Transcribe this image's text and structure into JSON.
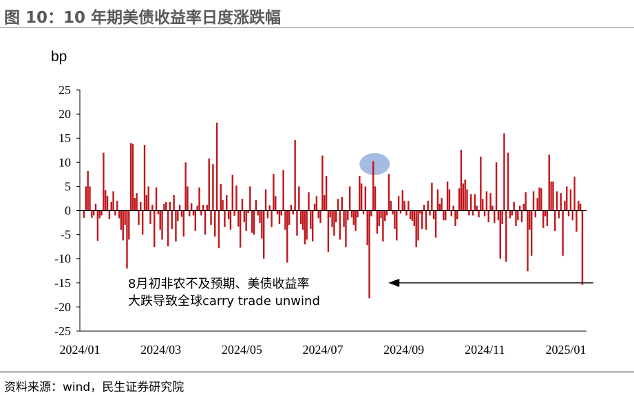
{
  "title": "图 10：10 年期美债收益率日度涨跌幅",
  "source": "资料来源：wind，民生证券研究院",
  "chart_data": {
    "type": "bar",
    "title": "",
    "ylabel": "bp",
    "xlabel": "",
    "ylim": [
      -25,
      25
    ],
    "yticks": [
      25,
      20,
      15,
      10,
      5,
      0,
      -5,
      -10,
      -15,
      -20,
      -25
    ],
    "xticks": [
      "2024/01",
      "2024/03",
      "2024/05",
      "2024/07",
      "2024/09",
      "2024/11",
      "2025/01"
    ],
    "bar_color": "#c0161a",
    "highlight_color": "#8faadc",
    "annotation": {
      "lines": [
        "8月初非农不及预期、美债收益率",
        "大跌导致全球carry trade unwind"
      ],
      "target_index": 148,
      "arrow_from_index": 262
    },
    "values": [
      -1.5,
      5,
      8.2,
      5,
      -1.5,
      -1,
      1.4,
      -6.3,
      -1.6,
      -1,
      12,
      4.2,
      3,
      -1.8,
      1.8,
      4,
      -1,
      2,
      -1.6,
      -4,
      -6.2,
      -3,
      -12,
      -6,
      14,
      13.8,
      2.6,
      3.6,
      -3,
      1.8,
      -5,
      13.6,
      3.2,
      5,
      -2.8,
      1.2,
      -7.6,
      4.8,
      -0.8,
      -4,
      -6,
      1.4,
      1.8,
      -7.4,
      1.8,
      -3.8,
      3.2,
      -6.4,
      -2.2,
      1.2,
      -1.3,
      -5.4,
      10,
      5,
      -1.2,
      1.5,
      -1,
      -4.2,
      1,
      4.8,
      -1,
      1.2,
      -5,
      1.2,
      10.8,
      -3,
      9.6,
      -5.4,
      18.2,
      -7.8,
      5.5,
      2.2,
      -3.4,
      3.2,
      -1.8,
      -4,
      7.4,
      -1.1,
      5.2,
      -3.3,
      -7.7,
      2.4,
      -2.4,
      -4.2,
      -0.5,
      5,
      -4.6,
      -5,
      2.2,
      -1,
      -2.6,
      -5.8,
      -10,
      4.4,
      -1.6,
      1.1,
      -3.4,
      7.6,
      3,
      -0.8,
      -2.8,
      -1,
      8.4,
      -4,
      -10.8,
      -3,
      1.2,
      -0.8,
      14.6,
      -5.2,
      5,
      -2.8,
      -4,
      -7,
      -6,
      3.8,
      -3.8,
      -6.4,
      1.4,
      3,
      -1.6,
      -2.6,
      11.4,
      3.2,
      7.2,
      -8.6,
      -1.4,
      -3.4,
      -5.2,
      -2.4,
      2.4,
      -6,
      2.8,
      -3.4,
      -7.6,
      -2,
      5,
      -1.4,
      -3,
      -4.2,
      -1.4,
      7.2,
      5.6,
      -0.8,
      5,
      -7.2,
      -18.2,
      -1.2,
      10.2,
      5,
      -4.8,
      -3.2,
      -1.6,
      -6.4,
      -2.2,
      -1,
      7.6,
      2,
      -0.8,
      -3.8,
      -6.2,
      3,
      -0.6,
      4.2,
      2,
      -1,
      2,
      -1.8,
      -2.2,
      -3.2,
      -7.6,
      -6.2,
      -0.6,
      -3.8,
      1.2,
      -4,
      2,
      -1,
      5.8,
      -1.8,
      -5.6,
      4.4,
      1.4,
      2.6,
      -2,
      -2,
      6,
      4.4,
      -1.2,
      1,
      -3.2,
      -1.8,
      4.6,
      12.6,
      5.6,
      6.4,
      4.4,
      -1,
      3.4,
      -1,
      3.4,
      1,
      -1.4,
      11.2,
      2.4,
      -1.2,
      4,
      -2.4,
      3.6,
      1,
      -2.6,
      10,
      -2,
      -10,
      -2.8,
      16,
      -10.6,
      12,
      -1.6,
      -1,
      1.8,
      -3.2,
      -2,
      1,
      -2.4,
      1.4,
      3.8,
      -12.6,
      -4,
      -9.4,
      4,
      -1.4,
      2.6,
      4.8,
      4.6,
      -3.6,
      -1.2,
      -3.2,
      11.6,
      6,
      6,
      -4.2,
      4,
      -1.6,
      3.6,
      -9.4,
      2,
      5,
      -1.2,
      4.4,
      -2,
      7,
      -4.4,
      2,
      1.4,
      -15.4
    ]
  }
}
